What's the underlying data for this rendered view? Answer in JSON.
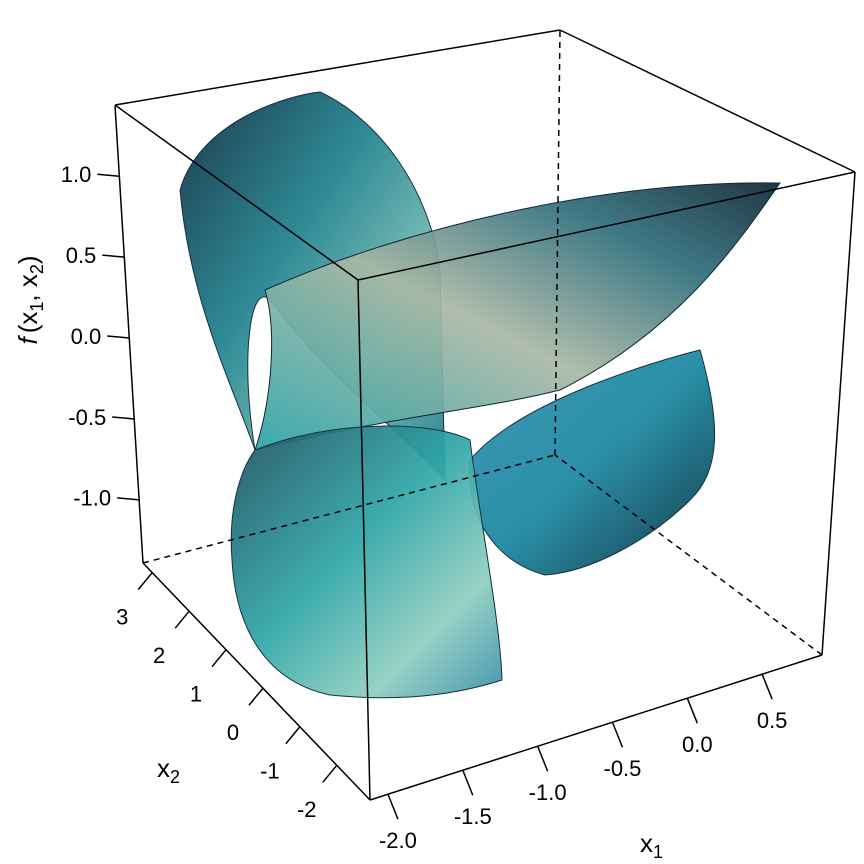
{
  "chart_data": {
    "type": "surface3d",
    "xlabel": {
      "text": "x",
      "sub": "1"
    },
    "ylabel": {
      "text": "x",
      "sub": "2"
    },
    "zlabel": {
      "func": "f",
      "open": "(x",
      "sub1": "1",
      "sep": ", x",
      "sub2": "2",
      "close": ")"
    },
    "xlim": [
      -2.12,
      0.9
    ],
    "ylim": [
      -2.9,
      3.25
    ],
    "zlim": [
      -1.39,
      1.44
    ],
    "xticks": [
      {
        "value": -2,
        "label": "-2.0"
      },
      -1.5,
      {
        "value": -1,
        "label": "-1.0"
      },
      -0.5,
      {
        "value": 0,
        "label": "0.0"
      },
      0.5
    ],
    "yticks": [
      -2,
      -1,
      0,
      1,
      2,
      3
    ],
    "zticks": [
      {
        "value": -1,
        "label": "-1.0"
      },
      -0.5,
      {
        "value": 0,
        "label": "0.0"
      },
      0.5,
      {
        "value": 1,
        "label": "1.0"
      }
    ]
  }
}
